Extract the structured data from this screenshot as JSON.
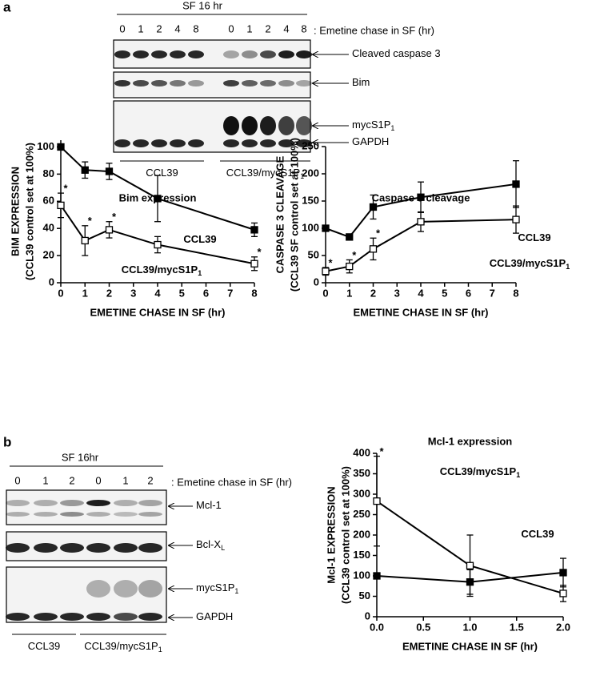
{
  "a": {
    "panel": "a",
    "header": "SF 16 hr",
    "lanes": [
      "0",
      "1",
      "2",
      "4",
      "8",
      "0",
      "1",
      "2",
      "4",
      "8"
    ],
    "chase": ": Emetine chase in SF (hr)",
    "blots": [
      {
        "main": "Cleaved caspase 3"
      },
      {
        "main": "Bim"
      },
      {
        "main": "mycS1P",
        "sub": "1"
      },
      {
        "main": "GAPDH"
      }
    ],
    "groups": [
      {
        "main": "CCL39"
      },
      {
        "main": "CCL39/mycS1P",
        "sub": "1"
      }
    ]
  },
  "b": {
    "panel": "b",
    "header": "SF 16hr",
    "lanes": [
      "0",
      "1",
      "2",
      "0",
      "1",
      "2"
    ],
    "chase": ": Emetine chase in SF (hr)",
    "blots": [
      {
        "main": "Mcl-1"
      },
      {
        "main": "Bcl-X",
        "sub": "L"
      },
      {
        "main": "mycS1P",
        "sub": "1"
      },
      {
        "main": "GAPDH"
      }
    ],
    "groups": [
      {
        "main": "CCL39"
      },
      {
        "main": "CCL39/mycS1P",
        "sub": "1"
      }
    ]
  },
  "chart_data": [
    {
      "type": "line",
      "title": "Bim expression",
      "ylabel": [
        "BIM EXPRESSION",
        "(CCL39 control set at 100%)"
      ],
      "xlabel": "EMETINE CHASE IN SF (hr)",
      "x": [
        0,
        1,
        2,
        4,
        8
      ],
      "xlim": [
        0,
        8
      ],
      "xticks": [
        0,
        1,
        2,
        3,
        4,
        5,
        6,
        7,
        8
      ],
      "ylim": [
        0,
        105
      ],
      "yticks": [
        0,
        20,
        40,
        60,
        80,
        100
      ],
      "series": [
        {
          "name": "CCL39",
          "color": "#000000",
          "marker": "filled",
          "values": [
            100,
            83,
            82,
            62,
            39
          ],
          "errors": [
            0,
            6,
            6,
            17,
            5
          ]
        },
        {
          "name": "CCL39/mycS1P",
          "name_sub": "1",
          "color": "#000000",
          "marker": "open",
          "values": [
            57,
            31,
            39,
            28,
            14
          ],
          "errors": [
            9,
            11,
            6,
            6,
            5
          ]
        }
      ],
      "annotations": [
        {
          "text": "*",
          "series": 1,
          "index": 0
        },
        {
          "text": "*",
          "series": 1,
          "index": 1
        },
        {
          "text": "*",
          "series": 1,
          "index": 2
        },
        {
          "text": "*",
          "series": 1,
          "index": 4
        }
      ]
    },
    {
      "type": "line",
      "title": "Caspase 3 cleavage",
      "ylabel": [
        "CASPASE 3 CLEAVAGE",
        "(CCL39 SF control set at 100%)"
      ],
      "xlabel": "EMETINE CHASE IN SF (hr)",
      "x": [
        0,
        1,
        2,
        4,
        8
      ],
      "xlim": [
        0,
        8
      ],
      "xticks": [
        0,
        1,
        2,
        3,
        4,
        5,
        6,
        7,
        8
      ],
      "ylim": [
        0,
        250
      ],
      "yticks": [
        0,
        50,
        100,
        150,
        200,
        250
      ],
      "series": [
        {
          "name": "CCL39",
          "color": "#000000",
          "marker": "filled",
          "values": [
            100,
            84,
            139,
            157,
            181
          ],
          "errors": [
            0,
            0,
            22,
            28,
            43
          ]
        },
        {
          "name": "CCL39/mycS1P",
          "name_sub": "1",
          "color": "#000000",
          "marker": "open",
          "values": [
            21,
            30,
            62,
            112,
            116
          ],
          "errors": [
            7,
            12,
            20,
            18,
            25
          ]
        }
      ],
      "annotations": [
        {
          "text": "*",
          "series": 1,
          "index": 0
        },
        {
          "text": "*",
          "series": 1,
          "index": 1
        },
        {
          "text": "*",
          "series": 1,
          "index": 2
        }
      ]
    },
    {
      "type": "line",
      "title": "Mcl-1 expression",
      "ylabel": [
        "Mcl-1 EXPRESSION",
        "(CCL39 control set at 100%)"
      ],
      "xlabel": "EMETINE CHASE IN SF (hr)",
      "x": [
        0,
        1,
        2
      ],
      "xlim": [
        0,
        2
      ],
      "xticks": [
        {
          "value": 0,
          "label": "0.0"
        },
        {
          "value": 0.5,
          "label": "0.5"
        },
        {
          "value": 1,
          "label": "1.0"
        },
        {
          "value": 1.5,
          "label": "1.5"
        },
        {
          "value": 2,
          "label": "2.0"
        }
      ],
      "ylim": [
        0,
        400
      ],
      "yticks": [
        0,
        50,
        100,
        150,
        200,
        250,
        300,
        350,
        400
      ],
      "series": [
        {
          "name": "CCL39",
          "color": "#000000",
          "marker": "filled",
          "values": [
            100,
            85,
            108
          ],
          "errors": [
            0,
            30,
            35
          ]
        },
        {
          "name": "CCL39/mycS1P",
          "name_sub": "1",
          "color": "#000000",
          "marker": "open",
          "values": [
            283,
            125,
            57
          ],
          "errors": [
            110,
            75,
            20
          ]
        }
      ],
      "annotations": [
        {
          "text": "*",
          "series": 1,
          "index": 0
        }
      ]
    }
  ]
}
